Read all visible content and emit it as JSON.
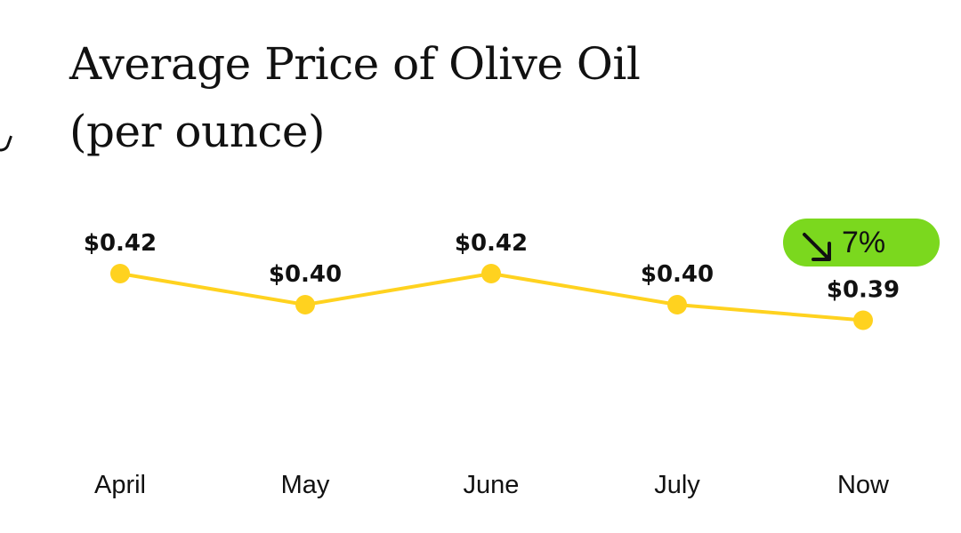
{
  "chart_data": {
    "type": "line",
    "title_lines": [
      "Average Price of Olive Oil",
      "(per ounce)"
    ],
    "categories": [
      "April",
      "May",
      "June",
      "July",
      "Now"
    ],
    "values": [
      0.42,
      0.4,
      0.42,
      0.4,
      0.39
    ],
    "value_labels": [
      "$0.42",
      "$0.40",
      "$0.42",
      "$0.40",
      "$0.39"
    ],
    "xlabel": "",
    "ylabel": "",
    "grid": false,
    "series_color": "#FFD21F",
    "annotation": {
      "text": "7%",
      "direction": "down",
      "icon": "arrow-down-right-icon",
      "color": "#7BD81E"
    }
  }
}
